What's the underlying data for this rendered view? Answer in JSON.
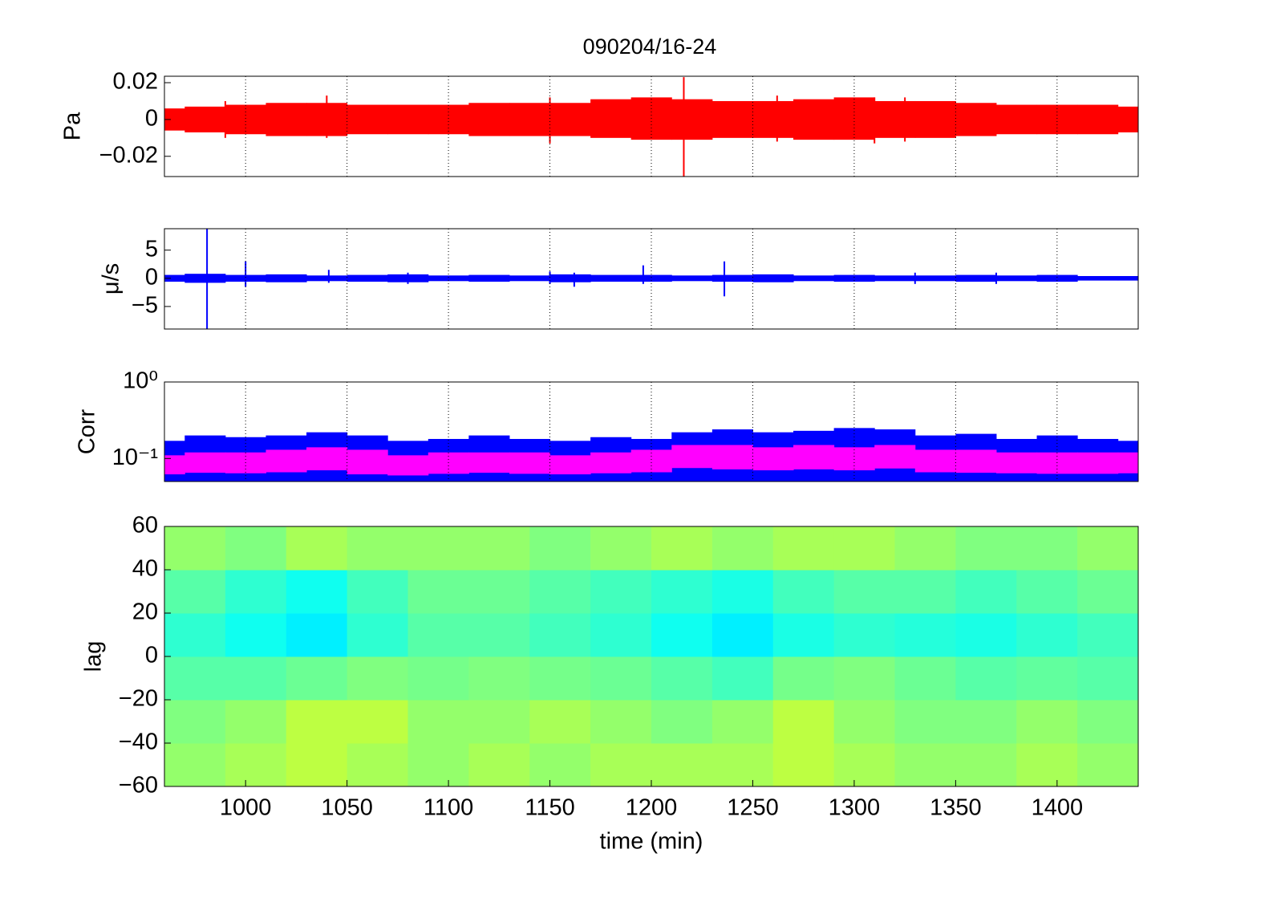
{
  "chart_data": [
    {
      "type": "band",
      "title": "090204/16-24",
      "ylabel": "Pa",
      "color": "#ff0000",
      "grid": true,
      "xlim": [
        960,
        1440
      ],
      "ylim": [
        -0.031,
        0.0235
      ],
      "yticks": [
        0.02,
        0,
        {
          "value": -0.02,
          "label": "−0.02"
        }
      ],
      "x": [
        960,
        980,
        1000,
        1020,
        1040,
        1060,
        1080,
        1100,
        1120,
        1140,
        1160,
        1180,
        1200,
        1220,
        1240,
        1260,
        1280,
        1300,
        1320,
        1340,
        1360,
        1380,
        1400,
        1420,
        1440
      ],
      "upper": [
        0.006,
        0.007,
        0.008,
        0.009,
        0.009,
        0.008,
        0.008,
        0.008,
        0.009,
        0.009,
        0.009,
        0.011,
        0.012,
        0.011,
        0.01,
        0.01,
        0.011,
        0.012,
        0.01,
        0.01,
        0.009,
        0.008,
        0.008,
        0.008,
        0.007
      ],
      "lower": [
        -0.006,
        -0.007,
        -0.008,
        -0.009,
        -0.009,
        -0.008,
        -0.008,
        -0.008,
        -0.009,
        -0.009,
        -0.009,
        -0.01,
        -0.011,
        -0.011,
        -0.01,
        -0.01,
        -0.011,
        -0.011,
        -0.01,
        -0.01,
        -0.009,
        -0.008,
        -0.008,
        -0.008,
        -0.007
      ],
      "spikes": {
        "x": [
          990,
          1040,
          1150,
          1216,
          1262,
          1310,
          1325
        ],
        "upper": [
          0.01,
          0.013,
          0.012,
          0.023,
          0.013,
          0.012,
          0.012
        ],
        "lower": [
          -0.01,
          -0.01,
          -0.013,
          -0.031,
          -0.012,
          -0.013,
          -0.012
        ]
      }
    },
    {
      "type": "band",
      "ylabel": "μ/s",
      "color": "#0000ff",
      "grid": true,
      "xlim": [
        960,
        1440
      ],
      "ylim": [
        -9,
        8.8
      ],
      "yticks": [
        5,
        0,
        {
          "value": -5,
          "label": "−5"
        }
      ],
      "x": [
        960,
        980,
        1000,
        1020,
        1040,
        1060,
        1080,
        1100,
        1120,
        1140,
        1160,
        1180,
        1200,
        1220,
        1240,
        1260,
        1280,
        1300,
        1320,
        1340,
        1360,
        1380,
        1400,
        1420,
        1440
      ],
      "upper": [
        0.6,
        0.8,
        0.6,
        0.7,
        0.5,
        0.6,
        0.7,
        0.5,
        0.6,
        0.5,
        0.7,
        0.6,
        0.6,
        0.5,
        0.6,
        0.7,
        0.5,
        0.6,
        0.5,
        0.5,
        0.6,
        0.5,
        0.6,
        0.4,
        0.4
      ],
      "lower": [
        -0.6,
        -0.8,
        -0.6,
        -0.7,
        -0.5,
        -0.6,
        -0.7,
        -0.5,
        -0.6,
        -0.5,
        -0.7,
        -0.6,
        -0.6,
        -0.5,
        -0.6,
        -0.7,
        -0.5,
        -0.6,
        -0.5,
        -0.5,
        -0.6,
        -0.5,
        -0.6,
        -0.4,
        -0.4
      ],
      "spikes": {
        "x": [
          981,
          1000,
          1041,
          1080,
          1150,
          1162,
          1196,
          1236,
          1330,
          1370
        ],
        "upper": [
          8.8,
          3,
          1.5,
          1,
          1.2,
          1,
          2.3,
          3,
          1,
          1
        ],
        "lower": [
          -9,
          -1.5,
          -0.8,
          -1,
          -1,
          -1.5,
          -1,
          -3.2,
          -1,
          -1
        ]
      }
    },
    {
      "type": "bands",
      "ylabel": "Corr",
      "yscale": "log",
      "grid": true,
      "xlim": [
        960,
        1440
      ],
      "ylim": [
        0.05,
        1
      ],
      "yticks": [
        {
          "value": 1,
          "label": "10⁰"
        },
        {
          "value": 0.1,
          "label": "10⁻¹"
        }
      ],
      "x": [
        960,
        980,
        1000,
        1020,
        1040,
        1060,
        1080,
        1100,
        1120,
        1140,
        1160,
        1180,
        1200,
        1220,
        1240,
        1260,
        1280,
        1300,
        1320,
        1340,
        1360,
        1380,
        1400,
        1420,
        1440
      ],
      "series": [
        {
          "color": "#0000ff",
          "upper": [
            0.17,
            0.2,
            0.19,
            0.2,
            0.22,
            0.2,
            0.17,
            0.18,
            0.2,
            0.18,
            0.17,
            0.19,
            0.18,
            0.22,
            0.24,
            0.22,
            0.23,
            0.25,
            0.24,
            0.2,
            0.21,
            0.18,
            0.2,
            0.18,
            0.17
          ],
          "lower": [
            0.05,
            0.05,
            0.05,
            0.05,
            0.05,
            0.05,
            0.05,
            0.05,
            0.05,
            0.05,
            0.05,
            0.05,
            0.05,
            0.05,
            0.05,
            0.05,
            0.05,
            0.05,
            0.05,
            0.05,
            0.05,
            0.05,
            0.05,
            0.05,
            0.05
          ]
        },
        {
          "color": "#ff00ff",
          "upper": [
            0.11,
            0.12,
            0.12,
            0.13,
            0.14,
            0.13,
            0.11,
            0.12,
            0.12,
            0.12,
            0.11,
            0.12,
            0.13,
            0.15,
            0.15,
            0.14,
            0.15,
            0.14,
            0.15,
            0.13,
            0.13,
            0.12,
            0.12,
            0.12,
            0.12
          ],
          "lower": [
            0.062,
            0.065,
            0.064,
            0.066,
            0.07,
            0.062,
            0.06,
            0.063,
            0.065,
            0.063,
            0.062,
            0.064,
            0.066,
            0.075,
            0.072,
            0.07,
            0.072,
            0.07,
            0.074,
            0.066,
            0.065,
            0.064,
            0.063,
            0.063,
            0.064
          ]
        }
      ]
    },
    {
      "type": "heatmap",
      "ylabel": "lag",
      "xlabel": "time (min)",
      "colormap": "jet",
      "clim": [
        0,
        1
      ],
      "grid": false,
      "xlim": [
        960,
        1440
      ],
      "ylim": [
        -60,
        60
      ],
      "xticks": [
        1000,
        1050,
        1100,
        1150,
        1200,
        1250,
        1300,
        1350,
        1400
      ],
      "yticks": [
        60,
        40,
        20,
        0,
        {
          "value": -20,
          "label": "−20"
        },
        {
          "value": -40,
          "label": "−40"
        },
        {
          "value": -60,
          "label": "−60"
        }
      ],
      "xbins": [
        960,
        990,
        1020,
        1050,
        1080,
        1110,
        1140,
        1170,
        1200,
        1230,
        1260,
        1290,
        1320,
        1350,
        1380,
        1410,
        1440
      ],
      "ybins": [
        -60,
        -40,
        -20,
        0,
        20,
        40,
        60
      ],
      "z": [
        [
          0.52,
          0.54,
          0.56,
          0.54,
          0.52,
          0.54,
          0.52,
          0.54,
          0.54,
          0.54,
          0.56,
          0.54,
          0.52,
          0.52,
          0.54,
          0.52
        ],
        [
          0.5,
          0.52,
          0.56,
          0.56,
          0.52,
          0.52,
          0.54,
          0.52,
          0.5,
          0.52,
          0.56,
          0.52,
          0.5,
          0.5,
          0.52,
          0.5
        ],
        [
          0.46,
          0.46,
          0.48,
          0.5,
          0.49,
          0.5,
          0.49,
          0.48,
          0.46,
          0.44,
          0.49,
          0.5,
          0.48,
          0.46,
          0.47,
          0.46
        ],
        [
          0.42,
          0.39,
          0.36,
          0.42,
          0.46,
          0.46,
          0.44,
          0.42,
          0.39,
          0.36,
          0.4,
          0.42,
          0.41,
          0.4,
          0.42,
          0.44
        ],
        [
          0.46,
          0.42,
          0.39,
          0.44,
          0.48,
          0.48,
          0.46,
          0.44,
          0.42,
          0.4,
          0.44,
          0.46,
          0.46,
          0.44,
          0.46,
          0.48
        ],
        [
          0.52,
          0.5,
          0.54,
          0.52,
          0.52,
          0.52,
          0.5,
          0.52,
          0.54,
          0.52,
          0.54,
          0.54,
          0.52,
          0.5,
          0.5,
          0.52
        ]
      ]
    }
  ]
}
